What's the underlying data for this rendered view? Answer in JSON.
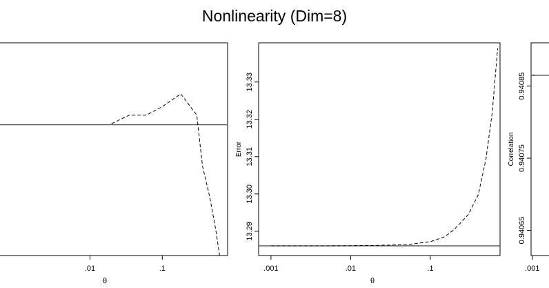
{
  "title": "Nonlinearity (Dim=8)",
  "colors": {
    "axis": "#000000",
    "reference": "#555555",
    "curve": "#000000"
  },
  "chart_data": [
    {
      "type": "line",
      "title": "",
      "xlabel": "θ",
      "ylabel": "",
      "xscale": "log",
      "xlim": [
        0.0005,
        0.8
      ],
      "ylim": [
        0.0,
        1.0
      ],
      "xticks": [
        {
          "value": 0.01,
          "label": ".01"
        },
        {
          "value": 0.1,
          "label": ".1"
        }
      ],
      "yticks": [],
      "series": [
        {
          "style": "dashed",
          "x": [
            0.02,
            0.035,
            0.06,
            0.1,
            0.18,
            0.3,
            0.36,
            0.45,
            0.55,
            0.62
          ],
          "y": [
            0.62,
            0.66,
            0.66,
            0.7,
            0.76,
            0.66,
            0.42,
            0.28,
            0.12,
            0.0
          ]
        }
      ],
      "reference_line": 0.615,
      "grid": false
    },
    {
      "type": "line",
      "title": "",
      "xlabel": "θ",
      "ylabel": "Error",
      "xscale": "log",
      "xlim": [
        0.0007,
        0.75
      ],
      "ylim": [
        13.2835,
        13.3405
      ],
      "xticks": [
        {
          "value": 0.001,
          "label": ".001"
        },
        {
          "value": 0.01,
          "label": ".01"
        },
        {
          "value": 0.1,
          "label": ".1"
        }
      ],
      "yticks": [
        {
          "value": 13.29,
          "label": "13.29"
        },
        {
          "value": 13.3,
          "label": "13.30"
        },
        {
          "value": 13.31,
          "label": "13.31"
        },
        {
          "value": 13.32,
          "label": "13.32"
        },
        {
          "value": 13.33,
          "label": "13.33"
        }
      ],
      "series": [
        {
          "style": "dashed",
          "x": [
            0.001,
            0.005,
            0.02,
            0.05,
            0.1,
            0.15,
            0.2,
            0.3,
            0.4,
            0.5,
            0.6,
            0.7
          ],
          "y": [
            13.2861,
            13.2861,
            13.2862,
            13.2864,
            13.2872,
            13.2885,
            13.2905,
            13.2945,
            13.2998,
            13.3095,
            13.322,
            13.339
          ]
        }
      ],
      "reference_line": 13.2861,
      "grid": false
    },
    {
      "type": "line",
      "title": "",
      "xlabel": "",
      "ylabel": "Correlation",
      "xscale": "log",
      "xlim": [
        0.0007,
        0.75
      ],
      "ylim": [
        0.940615,
        0.94091
      ],
      "xticks": [
        {
          "value": 0.001,
          "label": ".001"
        }
      ],
      "yticks": [
        {
          "value": 0.94065,
          "label": "0.94065"
        },
        {
          "value": 0.94075,
          "label": "0.94075"
        },
        {
          "value": 0.94085,
          "label": "0.94085"
        }
      ],
      "series": [
        {
          "style": "dashed",
          "x": [
            0.001,
            0.002
          ],
          "y": [
            0.940865,
            0.940865
          ]
        }
      ],
      "reference_line": 0.940865,
      "grid": false
    }
  ]
}
